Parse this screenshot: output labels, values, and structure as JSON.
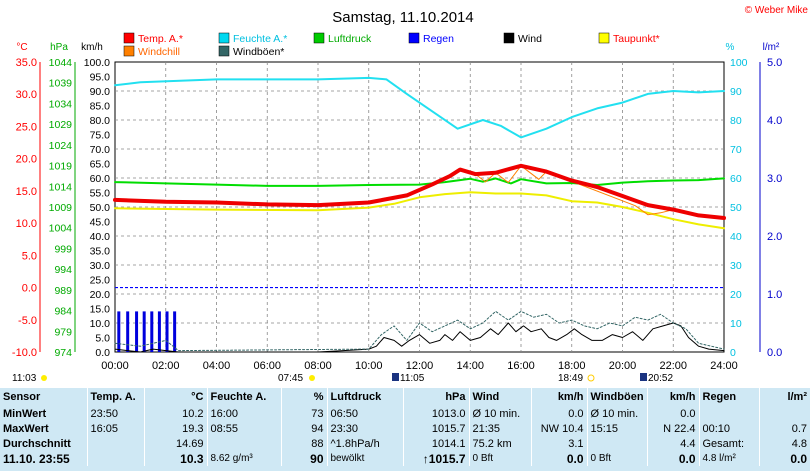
{
  "title": "Samstag, 11.10.2014",
  "credit": "© Weber Mike",
  "legend": [
    {
      "label": "Temp. A.*",
      "color": "#ff0000"
    },
    {
      "label": "Feuchte A.*",
      "color": "#00d8f0"
    },
    {
      "label": "Luftdruck",
      "color": "#00cc00"
    },
    {
      "label": "Regen",
      "color": "#0000ff"
    },
    {
      "label": "Wind",
      "color": "#000000"
    },
    {
      "label": "Taupunkt*",
      "color": "#ffff00"
    },
    {
      "label": "Windchill",
      "color": "#ff8000"
    },
    {
      "label": "Windböen*",
      "color": "#336666"
    }
  ],
  "axis_units": {
    "temp": "°C",
    "pressure": "hPa",
    "wind": "km/h",
    "humidity": "%",
    "rain": "l/m²"
  },
  "sun": {
    "sunrise": "07:45",
    "sunset": "18:49",
    "moonrise": "11:05",
    "moonset": "20:52",
    "left_mark": "11:03"
  },
  "chart_data": {
    "type": "line",
    "x_unit": "hours",
    "xlim": [
      0,
      24
    ],
    "x_ticks": [
      "00:00",
      "02:00",
      "04:00",
      "06:00",
      "08:00",
      "10:00",
      "12:00",
      "14:00",
      "16:00",
      "18:00",
      "20:00",
      "22:00",
      "24:00"
    ],
    "axes": {
      "temp": {
        "range": [
          -10,
          35
        ],
        "ticks": [
          "35.0",
          "30.0",
          "25.0",
          "20.0",
          "15.0",
          "10.0",
          "5.0",
          "0.0",
          "-5.0",
          "-10.0"
        ]
      },
      "pressure": {
        "range": [
          974,
          1044
        ],
        "ticks": [
          "1044",
          "1039",
          "1034",
          "1029",
          "1024",
          "1019",
          "1014",
          "1009",
          "1004",
          "999",
          "994",
          "989",
          "984",
          "979",
          "974"
        ]
      },
      "wind": {
        "range": [
          0,
          100
        ],
        "ticks": [
          "100.0",
          "95.0",
          "90.0",
          "85.0",
          "80.0",
          "75.0",
          "70.0",
          "65.0",
          "60.0",
          "55.0",
          "50.0",
          "45.0",
          "40.0",
          "35.0",
          "30.0",
          "25.0",
          "20.0",
          "15.0",
          "10.0",
          "5.0",
          "0.0"
        ]
      },
      "humidity": {
        "range": [
          0,
          100
        ],
        "ticks": [
          "100",
          "90",
          "80",
          "70",
          "60",
          "50",
          "40",
          "30",
          "20",
          "10",
          "0"
        ]
      },
      "rain": {
        "range": [
          0,
          5
        ],
        "ticks": [
          "5.0",
          "4.0",
          "3.0",
          "2.0",
          "1.0",
          "0.0"
        ]
      }
    },
    "series": [
      {
        "name": "Temp. A.*",
        "axis": "temp",
        "color": "#ee0000",
        "width": 4,
        "points": [
          [
            0,
            13.6
          ],
          [
            2,
            13.3
          ],
          [
            4,
            13.2
          ],
          [
            6,
            12.9
          ],
          [
            8,
            12.8
          ],
          [
            10,
            13.2
          ],
          [
            11.5,
            14.3
          ],
          [
            12.5,
            16
          ],
          [
            13.2,
            17.3
          ],
          [
            13.6,
            18.3
          ],
          [
            14.2,
            17.6
          ],
          [
            15,
            17.8
          ],
          [
            16,
            18.9
          ],
          [
            17,
            18
          ],
          [
            18,
            16.6
          ],
          [
            19,
            15.6
          ],
          [
            20,
            14.2
          ],
          [
            21,
            12.8
          ],
          [
            22,
            12.1
          ],
          [
            23,
            11.2
          ],
          [
            24,
            10.8
          ]
        ]
      },
      {
        "name": "Feuchte A.*",
        "axis": "humidity",
        "color": "#22e0f0",
        "width": 2,
        "points": [
          [
            0,
            92
          ],
          [
            1,
            93
          ],
          [
            4,
            94
          ],
          [
            8,
            94
          ],
          [
            10,
            94.5
          ],
          [
            10.7,
            94
          ],
          [
            11.5,
            89
          ],
          [
            12.5,
            83
          ],
          [
            13.5,
            77
          ],
          [
            14.5,
            80
          ],
          [
            15.2,
            78
          ],
          [
            16,
            74
          ],
          [
            17,
            77
          ],
          [
            18,
            81
          ],
          [
            19,
            84
          ],
          [
            20,
            86
          ],
          [
            21,
            89
          ],
          [
            22,
            90
          ],
          [
            23,
            89.5
          ],
          [
            24,
            90
          ]
        ]
      },
      {
        "name": "Luftdruck",
        "axis": "pressure",
        "color": "#00dd00",
        "width": 2,
        "points": [
          [
            0,
            1015
          ],
          [
            2,
            1014.7
          ],
          [
            4,
            1014.4
          ],
          [
            6,
            1014.1
          ],
          [
            8,
            1014.1
          ],
          [
            10,
            1014.3
          ],
          [
            12,
            1014.4
          ],
          [
            13,
            1015
          ],
          [
            14,
            1015.8
          ],
          [
            14.5,
            1015.1
          ],
          [
            15,
            1015.9
          ],
          [
            15.6,
            1014.7
          ],
          [
            16,
            1015.7
          ],
          [
            17,
            1014.7
          ],
          [
            18,
            1014.8
          ],
          [
            19,
            1014.3
          ],
          [
            20,
            1014.9
          ],
          [
            21,
            1015.2
          ],
          [
            22,
            1015.4
          ],
          [
            23,
            1015.5
          ],
          [
            24,
            1015.9
          ]
        ]
      },
      {
        "name": "Taupunkt*",
        "axis": "temp",
        "color": "#eeee00",
        "width": 2,
        "points": [
          [
            0,
            12.3
          ],
          [
            4,
            12.1
          ],
          [
            8,
            12
          ],
          [
            10,
            12.4
          ],
          [
            11,
            13
          ],
          [
            12,
            14
          ],
          [
            13,
            14.5
          ],
          [
            14,
            14.8
          ],
          [
            15,
            14.6
          ],
          [
            16,
            14.6
          ],
          [
            17,
            14.3
          ],
          [
            18,
            13.4
          ],
          [
            19,
            13.2
          ],
          [
            20,
            12.5
          ],
          [
            21,
            11.6
          ],
          [
            22,
            10.6
          ],
          [
            23,
            9.8
          ],
          [
            24,
            9.2
          ]
        ]
      },
      {
        "name": "Windchill",
        "axis": "temp",
        "color": "#ff8000",
        "width": 1,
        "points": [
          [
            13.2,
            17.3
          ],
          [
            13.6,
            18.3
          ],
          [
            14.2,
            17.6
          ],
          [
            14.6,
            16.4
          ],
          [
            15,
            17.8
          ],
          [
            15.5,
            16.3
          ],
          [
            16,
            18.9
          ],
          [
            16.7,
            16.8
          ],
          [
            17,
            18
          ],
          [
            20.5,
            12.7
          ],
          [
            21,
            11.3
          ],
          [
            21.5,
            11.6
          ],
          [
            22,
            12.1
          ]
        ]
      },
      {
        "name": "Wind",
        "axis": "wind",
        "color": "#000000",
        "width": 1,
        "points": [
          [
            0,
            1
          ],
          [
            0.5,
            0.5
          ],
          [
            1,
            0
          ],
          [
            1.5,
            1
          ],
          [
            2,
            0.5
          ],
          [
            2.5,
            0
          ],
          [
            4,
            0
          ],
          [
            6,
            0
          ],
          [
            8,
            0
          ],
          [
            9,
            0.5
          ],
          [
            10,
            1
          ],
          [
            10.3,
            2
          ],
          [
            10.6,
            5
          ],
          [
            11,
            4
          ],
          [
            11.3,
            2
          ],
          [
            11.6,
            4
          ],
          [
            12,
            6
          ],
          [
            12.4,
            3
          ],
          [
            12.8,
            4
          ],
          [
            13,
            6
          ],
          [
            13.3,
            4
          ],
          [
            13.6,
            7
          ],
          [
            14,
            4
          ],
          [
            14.4,
            5
          ],
          [
            14.8,
            8
          ],
          [
            15.1,
            6
          ],
          [
            15.5,
            10
          ],
          [
            15.8,
            7
          ],
          [
            16.1,
            9
          ],
          [
            16.4,
            7
          ],
          [
            16.8,
            8
          ],
          [
            17.1,
            5
          ],
          [
            17.4,
            4
          ],
          [
            17.8,
            6
          ],
          [
            18.1,
            8
          ],
          [
            18.4,
            6
          ],
          [
            18.8,
            4
          ],
          [
            19.2,
            4
          ],
          [
            19.6,
            6
          ],
          [
            20,
            5
          ],
          [
            20.4,
            7
          ],
          [
            20.8,
            4
          ],
          [
            21.2,
            8
          ],
          [
            21.6,
            9
          ],
          [
            22,
            10
          ],
          [
            22.3,
            9
          ],
          [
            22.6,
            5
          ],
          [
            23,
            2
          ],
          [
            23.4,
            1
          ],
          [
            24,
            0.5
          ]
        ]
      },
      {
        "name": "Windböen*",
        "axis": "wind",
        "color": "#336666",
        "width": 1,
        "dash": "2,2",
        "points": [
          [
            0,
            3
          ],
          [
            1,
            2
          ],
          [
            2,
            4
          ],
          [
            2.5,
            0.5
          ],
          [
            10,
            1
          ],
          [
            10.5,
            6
          ],
          [
            11,
            9
          ],
          [
            11.5,
            4
          ],
          [
            12,
            10
          ],
          [
            12.5,
            7
          ],
          [
            13,
            9
          ],
          [
            13.5,
            11
          ],
          [
            14,
            8
          ],
          [
            14.5,
            10
          ],
          [
            15,
            14
          ],
          [
            15.5,
            11
          ],
          [
            16,
            14
          ],
          [
            16.5,
            12
          ],
          [
            17,
            13
          ],
          [
            17.5,
            10
          ],
          [
            18,
            11
          ],
          [
            18.5,
            9
          ],
          [
            19,
            8
          ],
          [
            19.5,
            10
          ],
          [
            20,
            9
          ],
          [
            20.5,
            12
          ],
          [
            21,
            11
          ],
          [
            21.5,
            13
          ],
          [
            22,
            10
          ],
          [
            22.5,
            8
          ],
          [
            23,
            3
          ],
          [
            24,
            1
          ]
        ]
      },
      {
        "name": "Regen",
        "axis": "rain",
        "type": "bars",
        "color": "#0000dd",
        "points": [
          [
            0.15,
            0.7
          ],
          [
            0.5,
            0.7
          ],
          [
            0.85,
            0.7
          ],
          [
            1.15,
            0.7
          ],
          [
            1.45,
            0.7
          ],
          [
            1.75,
            0.7
          ],
          [
            2.05,
            0.7
          ],
          [
            2.35,
            0.7
          ]
        ]
      }
    ],
    "reference_line": {
      "axis": "temp",
      "value": 0,
      "color": "#0000ff"
    }
  },
  "table": {
    "headers": {
      "sensor": "Sensor",
      "temp": "Temp. A.",
      "temp_unit": "°C",
      "hum": "Feuchte A.",
      "hum_unit": "%",
      "press": "Luftdruck",
      "press_unit": "hPa",
      "wind": "Wind",
      "wind_unit": "km/h",
      "gust": "Windböen",
      "gust_unit": "km/h",
      "rain": "Regen",
      "rain_unit": "l/m²"
    },
    "rows": [
      {
        "label": "MinWert",
        "temp_time": "23:50",
        "temp": "10.2",
        "hum_time": "16:00",
        "hum": "73",
        "press_time": "06:50",
        "press": "1013.0",
        "wind_desc": "Ø 10 min.",
        "wind": "0.0",
        "gust_desc": "Ø 10 min.",
        "gust": "0.0",
        "rain_desc": "",
        "rain": ""
      },
      {
        "label": "MaxWert",
        "temp_time": "16:05",
        "temp": "19.3",
        "hum_time": "08:55",
        "hum": "94",
        "press_time": "23:30",
        "press": "1015.7",
        "wind_desc": "21:35",
        "wind": "NW 10.4",
        "gust_desc": "15:15",
        "gust": "N 22.4",
        "rain_desc": "00:10",
        "rain": "0.7"
      },
      {
        "label": "Durchschnitt",
        "temp_time": "",
        "temp": "14.69",
        "hum_time": "",
        "hum": "88",
        "press_time": "^1.8hPa/h",
        "press": "1014.1",
        "wind_desc": "75.2 km",
        "wind": "3.1",
        "gust_desc": "",
        "gust": "4.4",
        "rain_desc": "Gesamt:",
        "rain": "4.8"
      },
      {
        "label": "11.10. 23:55",
        "temp_time": "",
        "temp": "10.3",
        "hum_time": "8.62 g/m³",
        "hum": "90",
        "press_time": "bewölkt",
        "press": "↑1015.7",
        "wind_desc": "0 Bft",
        "wind": "0.0",
        "gust_desc": "0 Bft",
        "gust": "0.0",
        "rain_desc": "4.8 l/m²",
        "rain": "0.0"
      }
    ]
  }
}
